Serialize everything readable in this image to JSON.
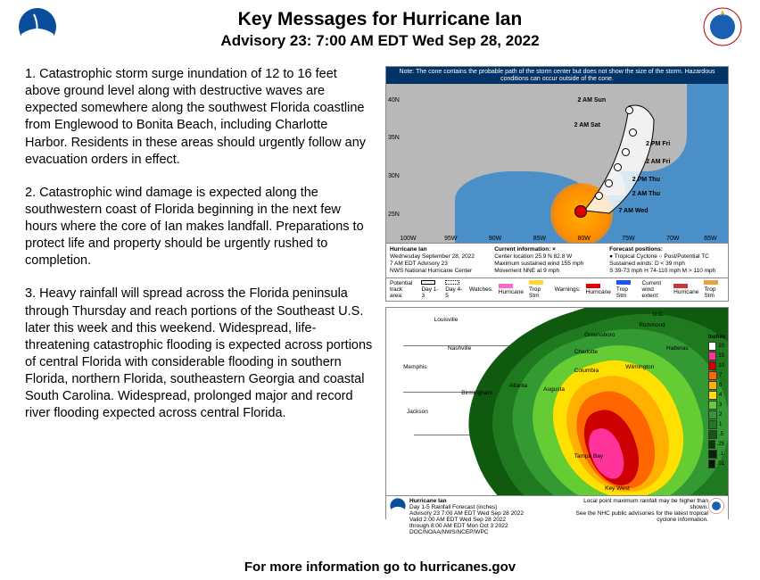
{
  "header": {
    "title": "Key Messages for Hurricane Ian",
    "subtitle": "Advisory 23:  7:00 AM EDT Wed Sep 28, 2022"
  },
  "messages": {
    "p1": "1. Catastrophic storm surge inundation of 12 to 16 feet above ground level along with destructive waves are expected somewhere along the southwest Florida coastline from Englewood to Bonita Beach, including Charlotte Harbor. Residents in these areas should urgently follow any evacuation orders in effect.",
    "p2": "2. Catastrophic wind damage is expected along the southwestern coast of Florida beginning in the next few hours where the core of Ian makes landfall. Preparations to protect life and property should be urgently rushed to completion.",
    "p3": "3. Heavy rainfall will spread across the Florida peninsula through Thursday and reach portions of the Southeast U.S. later this week and this weekend. Widespread, life-threatening catastrophic flooding is expected across portions of central Florida with considerable flooding in southern Florida, northern Florida, southeastern Georgia and coastal South Carolina. Widespread, prolonged major and record river flooding expected across central Florida."
  },
  "track_map": {
    "banner": "Note: The cone contains the probable path of the storm center but does not show the size of the storm. Hazardous conditions can occur outside of the cone.",
    "lat_ticks": [
      "40N",
      "35N",
      "30N",
      "25N"
    ],
    "lon_ticks": [
      "100W",
      "95W",
      "90W",
      "85W",
      "80W",
      "75W",
      "70W",
      "65W"
    ],
    "points": [
      {
        "label": "2 AM Sun"
      },
      {
        "label": "2 AM Sat"
      },
      {
        "label": "2 PM Fri"
      },
      {
        "label": "2 AM Fri"
      },
      {
        "label": "2 PM Thu"
      },
      {
        "label": "2 AM Thu"
      },
      {
        "label": "7 AM Wed"
      }
    ],
    "info": {
      "name": "Hurricane Ian",
      "date": "Wednesday September 28, 2022",
      "adv": "7 AM EDT Advisory 23",
      "src": "NWS National Hurricane Center",
      "cur_hd": "Current information: ×",
      "cur1": "Center location 25.9 N 82.8 W",
      "cur2": "Maximum sustained wind 155 mph",
      "cur3": "Movement NNE at 9 mph",
      "fc_hd": "Forecast positions:",
      "fc1": "● Tropical Cyclone   ○ Post/Potential TC",
      "fc2": "Sustained winds:   D < 39 mph",
      "fc3": "S 39-73 mph  H 74-110 mph  M > 110 mph"
    },
    "legend": {
      "track_area": "Potential track area:",
      "day13": "Day 1-3",
      "day45": "Day 4-5",
      "watches": "Watches:",
      "warnings": "Warnings:",
      "extent": "Current wind extent:",
      "hu": "Hurricane",
      "ts": "Trop Stm"
    },
    "colors": {
      "water": "#4a8fc7",
      "land": "#b8b8b8",
      "cone": "#ffffff",
      "watch_hu": "#ff66cc",
      "watch_ts": "#ffd633",
      "warn_hu": "#e00000",
      "warn_ts": "#1a53ff",
      "extent_hu": "#c93838",
      "extent_ts": "#e8a33d"
    }
  },
  "rain_map": {
    "title": "Hurricane Ian",
    "sub1": "Day 1-5 Rainfall Forecast (inches)",
    "sub2": "Advisory 23  7:00 AM EDT Wed Sep 28 2022",
    "sub3": "Valid 2:00 AM EDT Wed Sep 28 2022",
    "sub4": "through 8:00 AM EDT Mon Oct 3 2022",
    "sub5": "DOC/NOAA/NWS/NCEP/WPC",
    "note1": "Local point maximum rainfall may be higher than shown.",
    "note2": "See the NHC public advisories for the latest tropical cyclone information.",
    "legend_label": "Inches",
    "legend": [
      {
        "v": "20",
        "c": "#ffffff"
      },
      {
        "v": "15",
        "c": "#ff3399"
      },
      {
        "v": "10",
        "c": "#cc0000"
      },
      {
        "v": "7",
        "c": "#ff6600"
      },
      {
        "v": "5",
        "c": "#ffb000"
      },
      {
        "v": "4",
        "c": "#ffe000"
      },
      {
        "v": "3",
        "c": "#66cc33"
      },
      {
        "v": "2",
        "c": "#339933"
      },
      {
        "v": "1",
        "c": "#1f7a1f"
      },
      {
        "v": ".5",
        "c": "#0f5a0f"
      },
      {
        "v": ".25",
        "c": "#083a08"
      },
      {
        "v": ".1",
        "c": "#052505"
      },
      {
        "v": ".01",
        "c": "#031803"
      }
    ],
    "cities": [
      "Louisville",
      "Nashville",
      "Memphis",
      "Jackson",
      "Birmingham",
      "Atlanta",
      "Columbia",
      "Charlotte",
      "Greensboro",
      "D.C.",
      "Richmond",
      "Hatteras",
      "Wilmington",
      "Augusta",
      "Tampa Bay",
      "Key West"
    ]
  },
  "footer": "For more information go to hurricanes.gov"
}
